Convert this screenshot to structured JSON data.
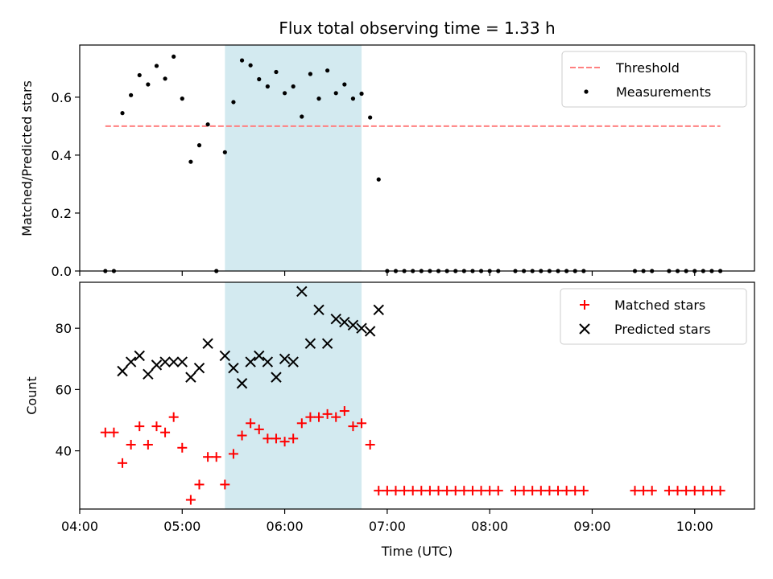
{
  "chart_data": [
    {
      "type": "scatter",
      "title": "Flux total observing time = 1.33 h",
      "xlabel": "",
      "ylabel": "Matched/Predicted stars",
      "xlim": [
        "04:00",
        "10:35"
      ],
      "ylim": [
        0,
        0.78
      ],
      "yticks": [
        "0.0",
        "0.2",
        "0.4",
        "0.6"
      ],
      "grid": false,
      "legend_position": "top-right",
      "highlight_span": {
        "start": "05:25",
        "end": "06:45",
        "color": "#d3eaf0"
      },
      "threshold": {
        "name": "Threshold",
        "value": 0.5,
        "x_start": "04:15",
        "x_end": "10:15",
        "color": "#ff8080",
        "style": "dashed"
      },
      "series": [
        {
          "name": "Measurements",
          "color": "#000000",
          "marker": "dot",
          "points": [
            [
              "04:15",
              0.0
            ],
            [
              "04:20",
              0.0
            ],
            [
              "04:25",
              0.545
            ],
            [
              "04:30",
              0.607
            ],
            [
              "04:35",
              0.676
            ],
            [
              "04:40",
              0.644
            ],
            [
              "04:45",
              0.708
            ],
            [
              "04:50",
              0.664
            ],
            [
              "04:55",
              0.74
            ],
            [
              "05:00",
              0.595
            ],
            [
              "05:05",
              0.377
            ],
            [
              "05:10",
              0.434
            ],
            [
              "05:15",
              0.506
            ],
            [
              "05:20",
              0.0
            ],
            [
              "05:25",
              0.41
            ],
            [
              "05:30",
              0.583
            ],
            [
              "05:35",
              0.727
            ],
            [
              "05:40",
              0.71
            ],
            [
              "05:45",
              0.662
            ],
            [
              "05:50",
              0.637
            ],
            [
              "05:55",
              0.687
            ],
            [
              "06:00",
              0.614
            ],
            [
              "06:05",
              0.637
            ],
            [
              "06:10",
              0.533
            ],
            [
              "06:15",
              0.68
            ],
            [
              "06:20",
              0.595
            ],
            [
              "06:25",
              0.692
            ],
            [
              "06:30",
              0.614
            ],
            [
              "06:35",
              0.644
            ],
            [
              "06:40",
              0.595
            ],
            [
              "06:45",
              0.612
            ],
            [
              "06:50",
              0.53
            ],
            [
              "06:55",
              0.316
            ],
            [
              "07:00",
              0.0
            ],
            [
              "07:05",
              0.0
            ],
            [
              "07:10",
              0.0
            ],
            [
              "07:15",
              0.0
            ],
            [
              "07:20",
              0.0
            ],
            [
              "07:25",
              0.0
            ],
            [
              "07:30",
              0.0
            ],
            [
              "07:35",
              0.0
            ],
            [
              "07:40",
              0.0
            ],
            [
              "07:45",
              0.0
            ],
            [
              "07:50",
              0.0
            ],
            [
              "07:55",
              0.0
            ],
            [
              "08:00",
              0.0
            ],
            [
              "08:05",
              0.0
            ],
            [
              "08:15",
              0.0
            ],
            [
              "08:20",
              0.0
            ],
            [
              "08:25",
              0.0
            ],
            [
              "08:30",
              0.0
            ],
            [
              "08:35",
              0.0
            ],
            [
              "08:40",
              0.0
            ],
            [
              "08:45",
              0.0
            ],
            [
              "08:50",
              0.0
            ],
            [
              "08:55",
              0.0
            ],
            [
              "09:25",
              0.0
            ],
            [
              "09:30",
              0.0
            ],
            [
              "09:35",
              0.0
            ],
            [
              "09:45",
              0.0
            ],
            [
              "09:50",
              0.0
            ],
            [
              "09:55",
              0.0
            ],
            [
              "10:00",
              0.0
            ],
            [
              "10:05",
              0.0
            ],
            [
              "10:10",
              0.0
            ],
            [
              "10:15",
              0.0
            ]
          ]
        }
      ]
    },
    {
      "type": "scatter",
      "title": "",
      "xlabel": "Time (UTC)",
      "ylabel": "Count",
      "xlim": [
        "04:00",
        "10:35"
      ],
      "ylim": [
        21,
        95
      ],
      "yticks": [
        "40",
        "60",
        "80"
      ],
      "xticks": [
        "04:00",
        "05:00",
        "06:00",
        "07:00",
        "08:00",
        "09:00",
        "10:00"
      ],
      "grid": false,
      "legend_position": "top-right",
      "highlight_span": {
        "start": "05:25",
        "end": "06:45",
        "color": "#d3eaf0"
      },
      "series": [
        {
          "name": "Matched stars",
          "color": "#ff0000",
          "marker": "plus",
          "points": [
            [
              "04:15",
              46
            ],
            [
              "04:20",
              46
            ],
            [
              "04:25",
              36
            ],
            [
              "04:30",
              42
            ],
            [
              "04:35",
              48
            ],
            [
              "04:40",
              42
            ],
            [
              "04:45",
              48
            ],
            [
              "04:50",
              46
            ],
            [
              "04:55",
              51
            ],
            [
              "05:00",
              41
            ],
            [
              "05:05",
              24
            ],
            [
              "05:10",
              29
            ],
            [
              "05:15",
              38
            ],
            [
              "05:20",
              38
            ],
            [
              "05:25",
              29
            ],
            [
              "05:30",
              39
            ],
            [
              "05:35",
              45
            ],
            [
              "05:40",
              49
            ],
            [
              "05:45",
              47
            ],
            [
              "05:50",
              44
            ],
            [
              "05:55",
              44
            ],
            [
              "06:00",
              43
            ],
            [
              "06:05",
              44
            ],
            [
              "06:10",
              49
            ],
            [
              "06:15",
              51
            ],
            [
              "06:20",
              51
            ],
            [
              "06:25",
              52
            ],
            [
              "06:30",
              51
            ],
            [
              "06:35",
              53
            ],
            [
              "06:40",
              48
            ],
            [
              "06:45",
              49
            ],
            [
              "06:50",
              42
            ],
            [
              "06:55",
              27
            ],
            [
              "07:00",
              27
            ],
            [
              "07:05",
              27
            ],
            [
              "07:10",
              27
            ],
            [
              "07:15",
              27
            ],
            [
              "07:20",
              27
            ],
            [
              "07:25",
              27
            ],
            [
              "07:30",
              27
            ],
            [
              "07:35",
              27
            ],
            [
              "07:40",
              27
            ],
            [
              "07:45",
              27
            ],
            [
              "07:50",
              27
            ],
            [
              "07:55",
              27
            ],
            [
              "08:00",
              27
            ],
            [
              "08:05",
              27
            ],
            [
              "08:15",
              27
            ],
            [
              "08:20",
              27
            ],
            [
              "08:25",
              27
            ],
            [
              "08:30",
              27
            ],
            [
              "08:35",
              27
            ],
            [
              "08:40",
              27
            ],
            [
              "08:45",
              27
            ],
            [
              "08:50",
              27
            ],
            [
              "08:55",
              27
            ],
            [
              "09:25",
              27
            ],
            [
              "09:30",
              27
            ],
            [
              "09:35",
              27
            ],
            [
              "09:45",
              27
            ],
            [
              "09:50",
              27
            ],
            [
              "09:55",
              27
            ],
            [
              "10:00",
              27
            ],
            [
              "10:05",
              27
            ],
            [
              "10:10",
              27
            ],
            [
              "10:15",
              27
            ]
          ]
        },
        {
          "name": "Predicted stars",
          "color": "#000000",
          "marker": "x",
          "points": [
            [
              "04:25",
              66
            ],
            [
              "04:30",
              69
            ],
            [
              "04:35",
              71
            ],
            [
              "04:40",
              65
            ],
            [
              "04:45",
              68
            ],
            [
              "04:50",
              69
            ],
            [
              "04:55",
              69
            ],
            [
              "05:00",
              69
            ],
            [
              "05:05",
              64
            ],
            [
              "05:10",
              67
            ],
            [
              "05:15",
              75
            ],
            [
              "05:25",
              71
            ],
            [
              "05:30",
              67
            ],
            [
              "05:35",
              62
            ],
            [
              "05:40",
              69
            ],
            [
              "05:45",
              71
            ],
            [
              "05:50",
              69
            ],
            [
              "05:55",
              64
            ],
            [
              "06:00",
              70
            ],
            [
              "06:05",
              69
            ],
            [
              "06:10",
              92
            ],
            [
              "06:15",
              75
            ],
            [
              "06:20",
              86
            ],
            [
              "06:25",
              75
            ],
            [
              "06:30",
              83
            ],
            [
              "06:35",
              82
            ],
            [
              "06:40",
              81
            ],
            [
              "06:45",
              80
            ],
            [
              "06:50",
              79
            ],
            [
              "06:55",
              86
            ]
          ]
        }
      ]
    }
  ]
}
